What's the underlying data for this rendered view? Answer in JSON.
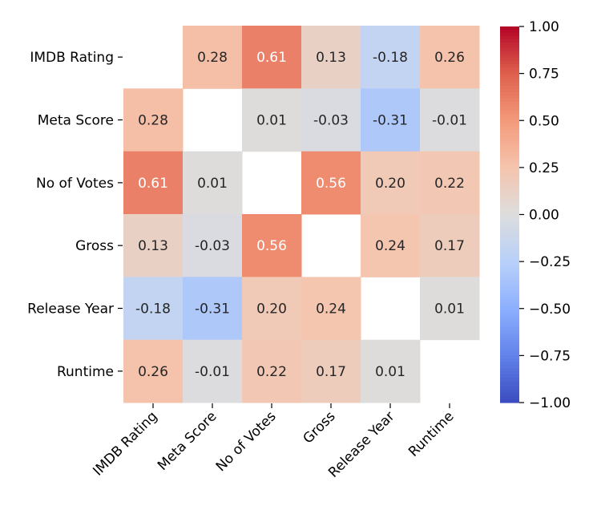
{
  "chart_data": {
    "type": "heatmap",
    "title": "",
    "xlabel": "",
    "ylabel": "",
    "row_labels": [
      "IMDB Rating",
      "Meta Score",
      "No of Votes",
      "Gross",
      "Release Year",
      "Runtime"
    ],
    "col_labels": [
      "IMDB Rating",
      "Meta Score",
      "No of Votes",
      "Gross",
      "Release Year",
      "Runtime"
    ],
    "values": [
      [
        null,
        0.28,
        0.61,
        0.13,
        -0.18,
        0.26
      ],
      [
        0.28,
        null,
        0.01,
        -0.03,
        -0.31,
        -0.01
      ],
      [
        0.61,
        0.01,
        null,
        0.56,
        0.2,
        0.22
      ],
      [
        0.13,
        -0.03,
        0.56,
        null,
        0.24,
        0.17
      ],
      [
        -0.18,
        -0.31,
        0.2,
        0.24,
        null,
        0.01
      ],
      [
        0.26,
        -0.01,
        0.22,
        0.17,
        0.01,
        null
      ]
    ],
    "annotation_format": "0.00",
    "colormap": "coolwarm",
    "vmin": -1.0,
    "vmax": 1.0,
    "colorbar": {
      "ticks": [
        1.0,
        0.75,
        0.5,
        0.25,
        0.0,
        -0.25,
        -0.5,
        -0.75,
        -1.0
      ],
      "tick_labels": [
        "1.00",
        "0.75",
        "0.50",
        "0.25",
        "0.00",
        "−0.25",
        "−0.50",
        "−0.75",
        "−1.00"
      ],
      "placement": "right"
    },
    "diagonal_masked": true,
    "x_tick_rotation_deg": 45
  }
}
